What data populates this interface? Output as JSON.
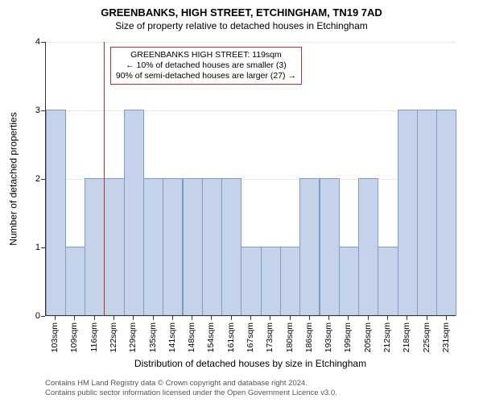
{
  "title": "GREENBANKS, HIGH STREET, ETCHINGHAM, TN19 7AD",
  "subtitle": "Size of property relative to detached houses in Etchingham",
  "chart": {
    "type": "bar",
    "ylabel": "Number of detached properties",
    "xlabel": "Distribution of detached houses by size in Etchingham",
    "ylim": [
      0,
      4
    ],
    "yticks": [
      0,
      1,
      2,
      3,
      4
    ],
    "grid_color": "#e6e6e6",
    "background_color": "#ffffff",
    "axis_color": "#333333",
    "bar_color": "#c4d3ea",
    "bar_border": "#7f9bc8",
    "bar_width": 0.95,
    "categories": [
      "103sqm",
      "109sqm",
      "116sqm",
      "122sqm",
      "129sqm",
      "135sqm",
      "141sqm",
      "148sqm",
      "154sqm",
      "161sqm",
      "167sqm",
      "173sqm",
      "180sqm",
      "186sqm",
      "193sqm",
      "199sqm",
      "205sqm",
      "212sqm",
      "218sqm",
      "225sqm",
      "231sqm"
    ],
    "values": [
      3,
      1,
      2,
      2,
      3,
      2,
      2,
      2,
      2,
      2,
      1,
      1,
      1,
      2,
      2,
      1,
      2,
      1,
      3,
      3,
      3
    ],
    "tick_fontsize": 11,
    "label_fontsize": 12,
    "xtick_rotation": -90
  },
  "marker": {
    "value_sqm": 119,
    "color": "#d62728",
    "width": 1.5
  },
  "annotation": {
    "lines": [
      "GREENBANKS HIGH STREET: 119sqm",
      "← 10% of detached houses are smaller (3)",
      "90% of semi-detached houses are larger (27) →"
    ],
    "border_color": "#d62728",
    "background": "rgba(255,255,255,0.92)",
    "fontsize": 10.5
  },
  "footer": {
    "line1": "Contains HM Land Registry data © Crown copyright and database right 2024.",
    "line2": "Contains public sector information licensed under the Open Government Licence v3.0.",
    "fontsize": 9.5,
    "color": "#555555"
  }
}
